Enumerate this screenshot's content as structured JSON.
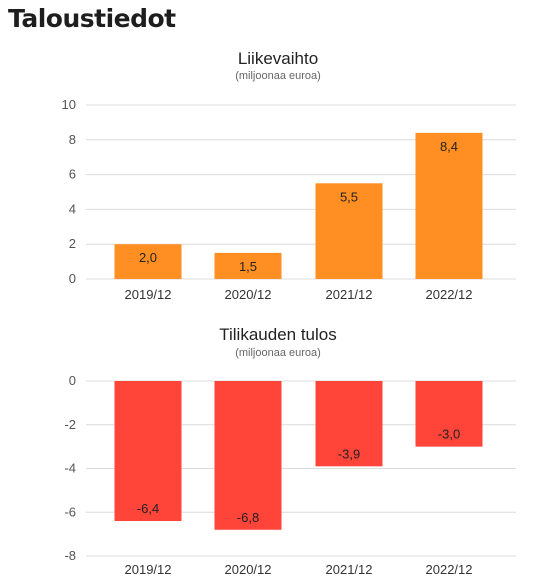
{
  "page": {
    "title": "Taloustiedot"
  },
  "chart_data": [
    {
      "type": "bar",
      "title": "Liikevaihto",
      "subtitle": "(miljoonaa euroa)",
      "categories": [
        "2019/12",
        "2020/12",
        "2021/12",
        "2022/12"
      ],
      "values": [
        2.0,
        1.5,
        5.5,
        8.4
      ],
      "value_labels": [
        "2,0",
        "1,5",
        "5,5",
        "8,4"
      ],
      "ylim": [
        0,
        10
      ],
      "yticks": [
        0,
        2,
        4,
        6,
        8,
        10
      ],
      "ytick_labels": [
        "0",
        "2",
        "4",
        "6",
        "8",
        "10"
      ],
      "grid": true,
      "color": "#ff8f22"
    },
    {
      "type": "bar",
      "title": "Tilikauden tulos",
      "subtitle": "(miljoonaa euroa)",
      "categories": [
        "2019/12",
        "2020/12",
        "2021/12",
        "2022/12"
      ],
      "values": [
        -6.4,
        -6.8,
        -3.9,
        -3.0
      ],
      "value_labels": [
        "-6,4",
        "-6,8",
        "-3,9",
        "-3,0"
      ],
      "ylim": [
        -8,
        0
      ],
      "yticks": [
        0,
        -2,
        -4,
        -6,
        -8
      ],
      "ytick_labels": [
        "0",
        "-2",
        "-4",
        "-6",
        "-8"
      ],
      "grid": true,
      "color": "#ff443a"
    }
  ]
}
